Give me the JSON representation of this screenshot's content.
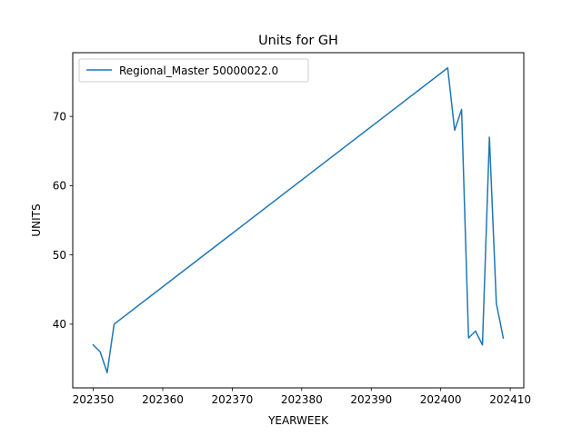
{
  "chart_data": {
    "type": "line",
    "title": "Units for GH",
    "xlabel": "YEARWEEK",
    "ylabel": "UNITS",
    "xlim": [
      202347.05,
      202411.95
    ],
    "ylim": [
      30.8,
      79.2
    ],
    "xticks": [
      202350,
      202360,
      202370,
      202380,
      202390,
      202400,
      202410
    ],
    "xtick_labels": [
      "202350",
      "202360",
      "202370",
      "202380",
      "202390",
      "202400",
      "202410"
    ],
    "yticks": [
      40,
      50,
      60,
      70
    ],
    "ytick_labels": [
      "40",
      "50",
      "60",
      "70"
    ],
    "grid": false,
    "legend_position": "upper-left",
    "series": [
      {
        "name": "Regional_Master 50000022.0",
        "color": "#1f77b4",
        "x": [
          202350,
          202351,
          202352,
          202353,
          202401,
          202402,
          202403,
          202404,
          202405,
          202406,
          202407,
          202408,
          202409
        ],
        "y": [
          37,
          36,
          33,
          40,
          77,
          68,
          71,
          38,
          39,
          37,
          67,
          43,
          38
        ]
      }
    ]
  }
}
